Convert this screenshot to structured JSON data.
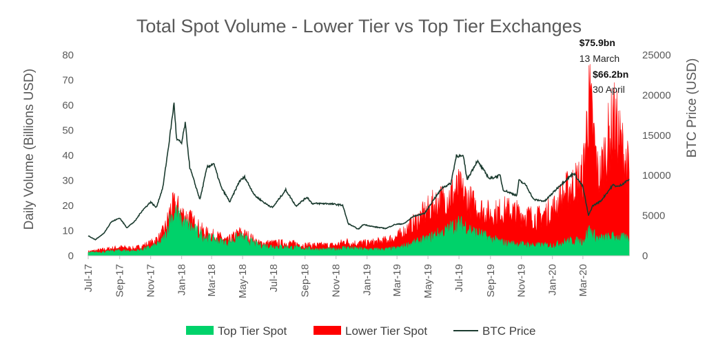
{
  "chart_data": {
    "type": "area",
    "title": "Total Spot Volume - Lower Tier vs Top Tier Exchanges",
    "ylabel_left": "Daily Volume (Billions USD)",
    "ylabel_right": "BTC Price (USD)",
    "ylim_left": [
      0,
      80
    ],
    "ylim_right": [
      0,
      25000
    ],
    "yticks_left": [
      "0",
      "10",
      "20",
      "30",
      "40",
      "50",
      "60",
      "70",
      "80"
    ],
    "yticks_right": [
      "0",
      "5000",
      "10000",
      "15000",
      "20000",
      "25000"
    ],
    "x_range": [
      "2017-07-01",
      "2020-05-31"
    ],
    "xticks": [
      {
        "date": "2017-07-01",
        "label": "Jul-17"
      },
      {
        "date": "2017-09-01",
        "label": "Sep-17"
      },
      {
        "date": "2017-11-01",
        "label": "Nov-17"
      },
      {
        "date": "2018-01-01",
        "label": "Jan-18"
      },
      {
        "date": "2018-03-01",
        "label": "Mar-18"
      },
      {
        "date": "2018-05-01",
        "label": "May-18"
      },
      {
        "date": "2018-07-01",
        "label": "Jul-18"
      },
      {
        "date": "2018-09-01",
        "label": "Sep-18"
      },
      {
        "date": "2018-11-01",
        "label": "Nov-18"
      },
      {
        "date": "2019-01-01",
        "label": "Jan-19"
      },
      {
        "date": "2019-03-01",
        "label": "Mar-19"
      },
      {
        "date": "2019-05-01",
        "label": "May-19"
      },
      {
        "date": "2019-07-01",
        "label": "Jul-19"
      },
      {
        "date": "2019-09-01",
        "label": "Sep-19"
      },
      {
        "date": "2019-11-01",
        "label": "Nov-19"
      },
      {
        "date": "2020-01-01",
        "label": "Jan-20"
      },
      {
        "date": "2020-03-01",
        "label": "Mar-20"
      }
    ],
    "grid": false,
    "legend_position": "bottom",
    "series": [
      {
        "name": "Top Tier Spot",
        "kind": "area",
        "axis": "left",
        "color": "#00d26a",
        "points": [
          [
            "2017-07-01",
            1.5
          ],
          [
            "2017-08-01",
            1.8
          ],
          [
            "2017-09-01",
            2.5
          ],
          [
            "2017-10-01",
            2.2
          ],
          [
            "2017-11-01",
            4
          ],
          [
            "2017-11-20",
            6
          ],
          [
            "2017-12-01",
            10
          ],
          [
            "2017-12-10",
            18
          ],
          [
            "2017-12-20",
            20
          ],
          [
            "2018-01-01",
            16
          ],
          [
            "2018-01-15",
            14
          ],
          [
            "2018-02-01",
            11
          ],
          [
            "2018-02-15",
            9
          ],
          [
            "2018-03-01",
            8
          ],
          [
            "2018-03-15",
            7
          ],
          [
            "2018-04-01",
            6
          ],
          [
            "2018-04-25",
            9
          ],
          [
            "2018-05-15",
            7
          ],
          [
            "2018-06-01",
            5
          ],
          [
            "2018-07-01",
            4.5
          ],
          [
            "2018-08-01",
            4
          ],
          [
            "2018-09-01",
            3.5
          ],
          [
            "2018-10-01",
            3
          ],
          [
            "2018-11-01",
            3
          ],
          [
            "2018-11-20",
            4
          ],
          [
            "2018-12-01",
            3.5
          ],
          [
            "2019-01-01",
            3
          ],
          [
            "2019-02-01",
            3
          ],
          [
            "2019-03-01",
            3.5
          ],
          [
            "2019-04-01",
            6
          ],
          [
            "2019-05-01",
            8
          ],
          [
            "2019-05-15",
            10
          ],
          [
            "2019-06-01",
            11
          ],
          [
            "2019-06-20",
            14
          ],
          [
            "2019-07-01",
            15
          ],
          [
            "2019-07-15",
            14
          ],
          [
            "2019-08-01",
            11
          ],
          [
            "2019-08-15",
            10
          ],
          [
            "2019-09-01",
            8
          ],
          [
            "2019-10-01",
            6
          ],
          [
            "2019-11-01",
            5.5
          ],
          [
            "2019-12-01",
            5
          ],
          [
            "2020-01-01",
            5
          ],
          [
            "2020-02-01",
            7
          ],
          [
            "2020-03-01",
            7
          ],
          [
            "2020-03-13",
            12
          ],
          [
            "2020-04-01",
            8
          ],
          [
            "2020-05-01",
            9
          ],
          [
            "2020-05-31",
            8
          ]
        ]
      },
      {
        "name": "Lower Tier Spot",
        "kind": "area",
        "axis": "left",
        "color": "#ff0000",
        "points": [
          [
            "2017-07-01",
            2
          ],
          [
            "2017-08-01",
            3
          ],
          [
            "2017-09-01",
            4
          ],
          [
            "2017-10-01",
            3.5
          ],
          [
            "2017-11-01",
            6
          ],
          [
            "2017-11-20",
            9
          ],
          [
            "2017-12-01",
            14
          ],
          [
            "2017-12-10",
            22
          ],
          [
            "2017-12-20",
            24
          ],
          [
            "2018-01-01",
            20
          ],
          [
            "2018-01-15",
            18
          ],
          [
            "2018-02-01",
            14
          ],
          [
            "2018-02-15",
            11
          ],
          [
            "2018-03-01",
            10
          ],
          [
            "2018-03-15",
            9
          ],
          [
            "2018-04-01",
            7
          ],
          [
            "2018-04-25",
            11
          ],
          [
            "2018-05-15",
            9
          ],
          [
            "2018-06-01",
            6
          ],
          [
            "2018-07-01",
            6
          ],
          [
            "2018-08-01",
            6
          ],
          [
            "2018-09-01",
            5
          ],
          [
            "2018-10-01",
            5
          ],
          [
            "2018-11-01",
            5
          ],
          [
            "2018-11-20",
            7
          ],
          [
            "2018-12-01",
            6
          ],
          [
            "2019-01-01",
            6
          ],
          [
            "2019-02-01",
            7
          ],
          [
            "2019-03-01",
            9
          ],
          [
            "2019-04-01",
            15
          ],
          [
            "2019-05-01",
            22
          ],
          [
            "2019-05-15",
            25
          ],
          [
            "2019-06-01",
            27
          ],
          [
            "2019-06-20",
            30
          ],
          [
            "2019-07-01",
            32
          ],
          [
            "2019-07-15",
            28
          ],
          [
            "2019-08-01",
            24
          ],
          [
            "2019-08-15",
            22
          ],
          [
            "2019-09-01",
            20
          ],
          [
            "2019-10-01",
            22
          ],
          [
            "2019-11-01",
            20
          ],
          [
            "2019-12-01",
            18
          ],
          [
            "2020-01-01",
            22
          ],
          [
            "2020-02-01",
            32
          ],
          [
            "2020-03-01",
            38
          ],
          [
            "2020-03-13",
            75.9
          ],
          [
            "2020-04-01",
            36
          ],
          [
            "2020-04-30",
            66.2
          ],
          [
            "2020-05-31",
            40
          ]
        ]
      },
      {
        "name": "BTC Price",
        "kind": "line",
        "axis": "right",
        "color": "#1a3a2e",
        "points": [
          [
            "2017-07-01",
            2500
          ],
          [
            "2017-07-15",
            2000
          ],
          [
            "2017-08-01",
            2800
          ],
          [
            "2017-08-15",
            4200
          ],
          [
            "2017-09-01",
            4700
          ],
          [
            "2017-09-15",
            3500
          ],
          [
            "2017-10-01",
            4300
          ],
          [
            "2017-10-15",
            5600
          ],
          [
            "2017-11-01",
            6700
          ],
          [
            "2017-11-12",
            6000
          ],
          [
            "2017-11-25",
            8500
          ],
          [
            "2017-12-07",
            14000
          ],
          [
            "2017-12-17",
            19000
          ],
          [
            "2017-12-22",
            14500
          ],
          [
            "2018-01-01",
            14000
          ],
          [
            "2018-01-08",
            16500
          ],
          [
            "2018-01-17",
            11000
          ],
          [
            "2018-02-06",
            7000
          ],
          [
            "2018-02-20",
            11000
          ],
          [
            "2018-03-05",
            11500
          ],
          [
            "2018-03-20",
            8500
          ],
          [
            "2018-04-06",
            6700
          ],
          [
            "2018-04-25",
            9300
          ],
          [
            "2018-05-05",
            9800
          ],
          [
            "2018-05-25",
            7500
          ],
          [
            "2018-06-15",
            6500
          ],
          [
            "2018-06-29",
            6000
          ],
          [
            "2018-07-25",
            8200
          ],
          [
            "2018-08-14",
            6200
          ],
          [
            "2018-09-05",
            7300
          ],
          [
            "2018-09-15",
            6500
          ],
          [
            "2018-10-15",
            6500
          ],
          [
            "2018-11-14",
            6300
          ],
          [
            "2018-11-25",
            4000
          ],
          [
            "2018-12-15",
            3300
          ],
          [
            "2018-12-25",
            3900
          ],
          [
            "2019-01-15",
            3600
          ],
          [
            "2019-02-07",
            3400
          ],
          [
            "2019-02-25",
            3900
          ],
          [
            "2019-03-15",
            4000
          ],
          [
            "2019-04-02",
            4900
          ],
          [
            "2019-04-25",
            5300
          ],
          [
            "2019-05-12",
            7000
          ],
          [
            "2019-05-30",
            8500
          ],
          [
            "2019-06-15",
            9000
          ],
          [
            "2019-06-26",
            12500
          ],
          [
            "2019-07-10",
            12300
          ],
          [
            "2019-07-17",
            9500
          ],
          [
            "2019-08-06",
            11800
          ],
          [
            "2019-08-30",
            9600
          ],
          [
            "2019-09-20",
            10000
          ],
          [
            "2019-09-26",
            8200
          ],
          [
            "2019-10-23",
            7500
          ],
          [
            "2019-10-27",
            9400
          ],
          [
            "2019-11-10",
            8800
          ],
          [
            "2019-11-25",
            7000
          ],
          [
            "2019-12-17",
            6800
          ],
          [
            "2020-01-15",
            8700
          ],
          [
            "2020-02-12",
            10300
          ],
          [
            "2020-03-01",
            8600
          ],
          [
            "2020-03-12",
            5000
          ],
          [
            "2020-03-20",
            6200
          ],
          [
            "2020-04-05",
            6800
          ],
          [
            "2020-04-29",
            8800
          ],
          [
            "2020-05-10",
            8600
          ],
          [
            "2020-05-31",
            9500
          ]
        ]
      }
    ],
    "annotations": [
      {
        "value": "$75.9bn",
        "date": "13 March",
        "x": "2020-03-13",
        "y": 75.9
      },
      {
        "value": "$66.2bn",
        "date": "30 April",
        "x": "2020-04-30",
        "y": 66.2
      }
    ]
  }
}
